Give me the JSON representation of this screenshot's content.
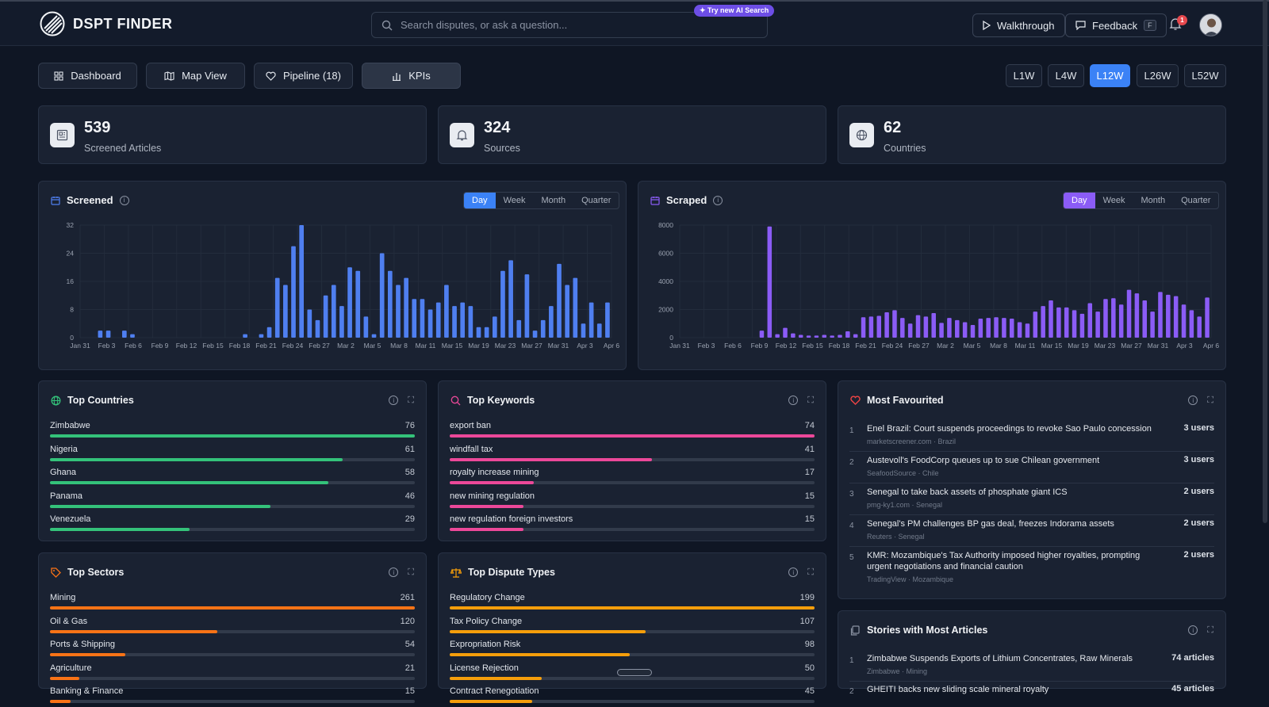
{
  "app": {
    "name": "DSPT FINDER"
  },
  "search": {
    "placeholder": "Search disputes, or ask a question...",
    "badge": "✦ Try new AI Search"
  },
  "header": {
    "walkthrough": "Walkthrough",
    "feedback": "Feedback",
    "feedback_key": "F",
    "notifications": "1"
  },
  "nav": [
    {
      "label": "Dashboard"
    },
    {
      "label": "Map View"
    },
    {
      "label": "Pipeline (18)"
    },
    {
      "label": "KPIs"
    }
  ],
  "ranges": [
    "L1W",
    "L4W",
    "L12W",
    "L26W",
    "L52W"
  ],
  "active_range": "L12W",
  "stats": [
    {
      "value": "539",
      "label": "Screened Articles"
    },
    {
      "value": "324",
      "label": "Sources"
    },
    {
      "value": "62",
      "label": "Countries"
    }
  ],
  "segments": [
    "Day",
    "Week",
    "Month",
    "Quarter"
  ],
  "chart_data": [
    {
      "type": "bar",
      "title": "Screened",
      "color": "#4f7ff0",
      "ylim": [
        0,
        32
      ],
      "yticks": [
        0,
        8,
        16,
        24,
        32
      ],
      "xticks": [
        "Jan 31",
        "Feb 3",
        "Feb 6",
        "Feb 9",
        "Feb 12",
        "Feb 15",
        "Feb 18",
        "Feb 21",
        "Feb 24",
        "Feb 27",
        "Mar 2",
        "Mar 5",
        "Mar 8",
        "Mar 11",
        "Mar 15",
        "Mar 19",
        "Mar 23",
        "Mar 27",
        "Mar 31",
        "Apr 3",
        "Apr 6"
      ],
      "values": [
        0,
        0,
        2,
        2,
        0,
        2,
        1,
        0,
        0,
        0,
        0,
        0,
        0,
        0,
        0,
        0,
        0,
        0,
        0,
        0,
        1,
        0,
        1,
        3,
        17,
        15,
        26,
        32,
        8,
        5,
        12,
        15,
        9,
        20,
        19,
        6,
        1,
        24,
        19,
        15,
        17,
        11,
        11,
        8,
        10,
        15,
        9,
        10,
        9,
        3,
        3,
        6,
        19,
        22,
        5,
        18,
        2,
        5,
        9,
        21,
        15,
        17,
        4,
        10,
        4,
        10
      ],
      "grid": true
    },
    {
      "type": "bar",
      "title": "Scraped",
      "color": "#8b5cf6",
      "ylim": [
        0,
        8000
      ],
      "yticks": [
        0,
        2000,
        4000,
        6000,
        8000
      ],
      "xticks": [
        "Jan 31",
        "Feb 3",
        "Feb 6",
        "Feb 9",
        "Feb 12",
        "Feb 15",
        "Feb 18",
        "Feb 21",
        "Feb 24",
        "Feb 27",
        "Mar 2",
        "Mar 5",
        "Mar 8",
        "Mar 11",
        "Mar 15",
        "Mar 19",
        "Mar 23",
        "Mar 27",
        "Mar 31",
        "Apr 3",
        "Apr 6"
      ],
      "values": [
        0,
        0,
        0,
        0,
        0,
        0,
        0,
        0,
        0,
        0,
        500,
        7900,
        250,
        700,
        300,
        200,
        150,
        150,
        200,
        150,
        200,
        450,
        250,
        1450,
        1500,
        1550,
        1800,
        1950,
        1400,
        1000,
        1600,
        1500,
        1750,
        1050,
        1400,
        1250,
        1100,
        900,
        1350,
        1400,
        1450,
        1400,
        1350,
        1100,
        1000,
        1850,
        2250,
        2650,
        2150,
        2150,
        1950,
        1700,
        2450,
        1850,
        2750,
        2800,
        2350,
        3400,
        3150,
        2650,
        1850,
        3250,
        3050,
        2950,
        2350,
        1950,
        1500,
        2850
      ],
      "grid": true
    }
  ],
  "top_countries": {
    "title": "Top Countries",
    "max": 76,
    "color": "#34c27a",
    "items": [
      {
        "label": "Zimbabwe",
        "value": 76
      },
      {
        "label": "Nigeria",
        "value": 61
      },
      {
        "label": "Ghana",
        "value": 58
      },
      {
        "label": "Panama",
        "value": 46
      },
      {
        "label": "Venezuela",
        "value": 29
      }
    ]
  },
  "top_keywords": {
    "title": "Top Keywords",
    "max": 74,
    "color": "#ec4899",
    "items": [
      {
        "label": "export ban",
        "value": 74
      },
      {
        "label": "windfall tax",
        "value": 41
      },
      {
        "label": "royalty increase mining",
        "value": 17
      },
      {
        "label": "new mining regulation",
        "value": 15
      },
      {
        "label": "new regulation foreign investors",
        "value": 15
      }
    ]
  },
  "top_sectors": {
    "title": "Top Sectors",
    "max": 261,
    "color": "#f97316",
    "items": [
      {
        "label": "Mining",
        "value": 261
      },
      {
        "label": "Oil & Gas",
        "value": 120
      },
      {
        "label": "Ports & Shipping",
        "value": 54
      },
      {
        "label": "Agriculture",
        "value": 21
      },
      {
        "label": "Banking & Finance",
        "value": 15
      }
    ]
  },
  "top_dispute_types": {
    "title": "Top Dispute Types",
    "max": 199,
    "color": "#f59e0b",
    "items": [
      {
        "label": "Regulatory Change",
        "value": 199
      },
      {
        "label": "Tax Policy Change",
        "value": 107
      },
      {
        "label": "Expropriation Risk",
        "value": 98
      },
      {
        "label": "License Rejection",
        "value": 50
      },
      {
        "label": "Contract Renegotiation",
        "value": 45
      }
    ]
  },
  "most_favourited": {
    "title": "Most Favourited",
    "items": [
      {
        "n": "1",
        "title": "Enel Brazil: Court suspends proceedings to revoke Sao Paulo concession",
        "meta": "marketscreener.com · Brazil",
        "users": "3 users"
      },
      {
        "n": "2",
        "title": "Austevoll's FoodCorp queues up to sue Chilean government",
        "meta": "SeafoodSource · Chile",
        "users": "3 users"
      },
      {
        "n": "3",
        "title": "Senegal to take back assets of phosphate giant ICS",
        "meta": "pmg-ky1.com · Senegal",
        "users": "2 users"
      },
      {
        "n": "4",
        "title": "Senegal's PM challenges BP gas deal, freezes Indorama assets",
        "meta": "Reuters · Senegal",
        "users": "2 users"
      },
      {
        "n": "5",
        "title": "KMR: Mozambique's Tax Authority imposed higher royalties, prompting urgent negotiations and financial caution",
        "meta": "TradingView · Mozambique",
        "users": "2 users"
      }
    ]
  },
  "stories": {
    "title": "Stories with Most Articles",
    "items": [
      {
        "n": "1",
        "title": "Zimbabwe Suspends Exports of Lithium Concentrates, Raw Minerals",
        "meta": "Zimbabwe · Mining",
        "count": "74 articles"
      },
      {
        "n": "2",
        "title": "GHEITI backs new sliding scale mineral royalty",
        "meta": "",
        "count": "45 articles"
      }
    ]
  }
}
